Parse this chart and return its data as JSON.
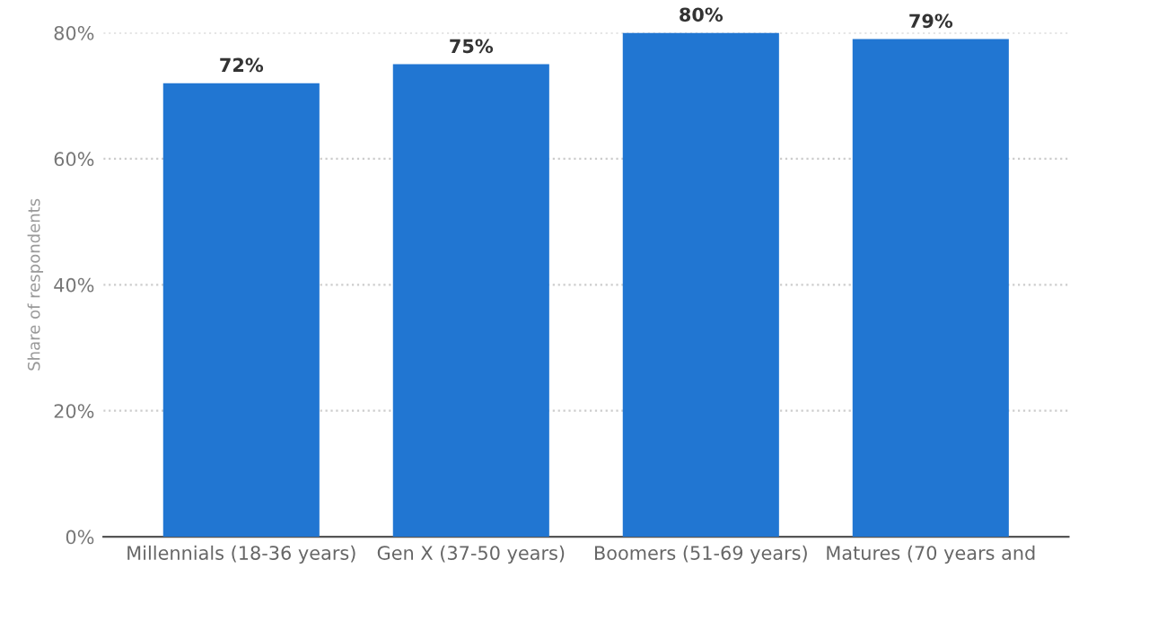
{
  "chart_data": {
    "type": "bar",
    "ylabel": "Share of respondents",
    "categories": [
      "Millennials (18-36 years)",
      "Gen X (37-50 years)",
      "Boomers (51-69 years)",
      "Matures (70 years and"
    ],
    "values": [
      72,
      75,
      80,
      79
    ],
    "color": "#2176d2",
    "value_labels": [
      "72%",
      "75%",
      "80%",
      "79%"
    ],
    "ylim": [
      0,
      80
    ],
    "yticks": [
      {
        "value": 0,
        "label": "0%"
      },
      {
        "value": 20,
        "label": "20%"
      },
      {
        "value": 40,
        "label": "40%"
      },
      {
        "value": 60,
        "label": "60%"
      },
      {
        "value": 80,
        "label": "80%"
      }
    ],
    "grid": "y"
  }
}
